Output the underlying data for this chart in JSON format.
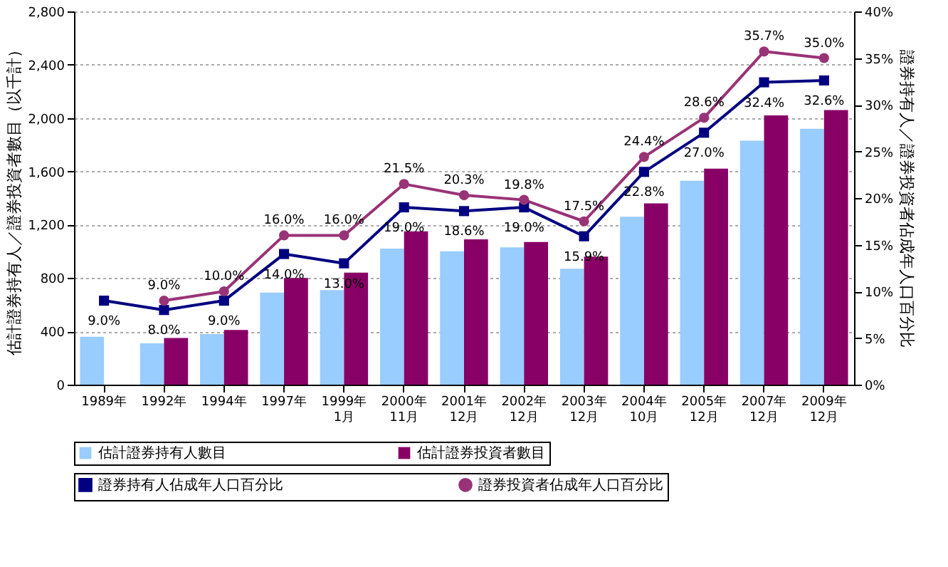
{
  "chart_data": {
    "type": "bar",
    "categories": [
      "1989年",
      "1992年",
      "1994年",
      "1997年",
      "1999年\n1月",
      "2000年\n11月",
      "2001年\n12月",
      "2002年\n12月",
      "2003年\n12月",
      "2004年\n10月",
      "2005年\n12月",
      "2007年\n12月",
      "2009年\n12月"
    ],
    "series": [
      {
        "name": "估計證券持有人數目",
        "color": "#99ccff",
        "values": [
          360,
          310,
          380,
          690,
          710,
          1020,
          1000,
          1030,
          870,
          1260,
          1530,
          1830,
          1920
        ]
      },
      {
        "name": "估計證券投資者數目",
        "color": "#880066",
        "values": [
          null,
          350,
          410,
          800,
          840,
          1150,
          1090,
          1070,
          960,
          1360,
          1620,
          2020,
          2060
        ]
      },
      {
        "name": "證券持有人佔成年人口百分比",
        "type": "line",
        "axis": "y2",
        "marker": "square",
        "color": "#000080",
        "values": [
          9.0,
          8.0,
          9.0,
          14.0,
          13.0,
          19.0,
          18.6,
          19.0,
          15.9,
          22.8,
          27.0,
          32.4,
          32.6
        ],
        "value_labels": [
          "9.0%",
          "8.0%",
          "9.0%",
          "14.0%",
          "13.0%",
          "19.0%",
          "18.6%",
          "19.0%",
          "15.9%",
          "22.8%",
          "27.0%",
          "32.4%",
          "32.6%"
        ]
      },
      {
        "name": "證券投資者佔成年人口百分比",
        "type": "line",
        "axis": "y2",
        "marker": "circle",
        "color": "#993377",
        "values": [
          null,
          9.0,
          10.0,
          16.0,
          16.0,
          21.5,
          20.3,
          19.8,
          17.5,
          24.4,
          28.6,
          35.7,
          35.0
        ],
        "value_labels": [
          null,
          "9.0%",
          "10.0%",
          "16.0%",
          "16.0%",
          "21.5%",
          "20.3%",
          "19.8%",
          "17.5%",
          "24.4%",
          "28.6%",
          "35.7%",
          "35.0%"
        ]
      }
    ],
    "ylabel": "估計證券持有人／證券投資者數目（以千計）",
    "y2label": "證券持有人／證券投資者佔成年人口百分比",
    "ylim": [
      0,
      2800
    ],
    "yticks": [
      0,
      400,
      800,
      {
        "value": 1200,
        "label": "1,200"
      },
      {
        "value": 1600,
        "label": "1,600"
      },
      {
        "value": 2000,
        "label": "2,000"
      },
      {
        "value": 2400,
        "label": "2,400"
      },
      {
        "value": 2800,
        "label": "2,800"
      }
    ],
    "y2lim": [
      0,
      40
    ],
    "y2ticks": [
      {
        "value": 0,
        "label": "0%"
      },
      {
        "value": 5,
        "label": "5%"
      },
      {
        "value": 10,
        "label": "10%"
      },
      {
        "value": 15,
        "label": "15%"
      },
      {
        "value": 20,
        "label": "20%"
      },
      {
        "value": 25,
        "label": "25%"
      },
      {
        "value": 30,
        "label": "30%"
      },
      {
        "value": 35,
        "label": "35%"
      },
      {
        "value": 40,
        "label": "40%"
      }
    ],
    "grid": "y",
    "legend": "bottom"
  }
}
